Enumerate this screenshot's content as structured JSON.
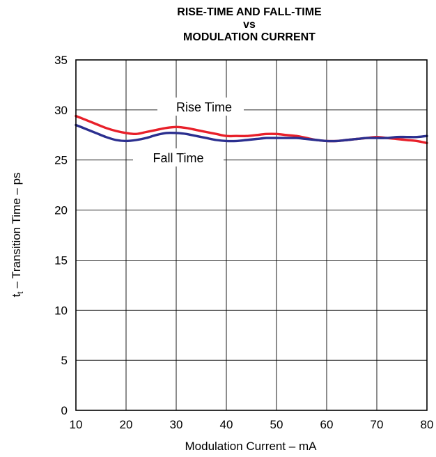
{
  "chart_data": {
    "type": "line",
    "title_lines": [
      "RISE-TIME AND FALL-TIME",
      "vs",
      "MODULATION CURRENT"
    ],
    "xlabel": "Modulation Current – mA",
    "ylabel_prefix": "t",
    "ylabel_subscript": "t",
    "ylabel_rest": " – Transition Time – ps",
    "xlim": [
      10,
      80
    ],
    "ylim": [
      0,
      35
    ],
    "xticks": [
      "10",
      "20",
      "30",
      "40",
      "50",
      "60",
      "70",
      "80"
    ],
    "yticks": [
      "0",
      "5",
      "10",
      "15",
      "20",
      "25",
      "30",
      "35"
    ],
    "grid": true,
    "series": [
      {
        "name": "Rise Time",
        "color": "#e8202a",
        "x": [
          10,
          12,
          14,
          16,
          18,
          20,
          22,
          24,
          26,
          28,
          30,
          32,
          34,
          36,
          38,
          40,
          42,
          44,
          46,
          48,
          50,
          52,
          54,
          56,
          58,
          60,
          62,
          64,
          66,
          68,
          70,
          72,
          74,
          76,
          78,
          80
        ],
        "y": [
          29.4,
          29.0,
          28.6,
          28.2,
          27.9,
          27.7,
          27.6,
          27.8,
          28.0,
          28.2,
          28.3,
          28.2,
          28.0,
          27.8,
          27.6,
          27.4,
          27.4,
          27.4,
          27.5,
          27.6,
          27.6,
          27.5,
          27.4,
          27.2,
          27.0,
          26.9,
          26.9,
          27.0,
          27.1,
          27.2,
          27.3,
          27.2,
          27.1,
          27.0,
          26.9,
          26.7
        ]
      },
      {
        "name": "Fall Time",
        "color": "#2b2f8f",
        "x": [
          10,
          12,
          14,
          16,
          18,
          20,
          22,
          24,
          26,
          28,
          30,
          32,
          34,
          36,
          38,
          40,
          42,
          44,
          46,
          48,
          50,
          52,
          54,
          56,
          58,
          60,
          62,
          64,
          66,
          68,
          70,
          72,
          74,
          76,
          78,
          80
        ],
        "y": [
          28.5,
          28.1,
          27.7,
          27.3,
          27.0,
          26.9,
          27.0,
          27.2,
          27.5,
          27.7,
          27.7,
          27.6,
          27.4,
          27.2,
          27.0,
          26.9,
          26.9,
          27.0,
          27.1,
          27.2,
          27.2,
          27.2,
          27.2,
          27.1,
          27.0,
          26.9,
          26.9,
          27.0,
          27.1,
          27.2,
          27.2,
          27.2,
          27.3,
          27.3,
          27.3,
          27.4
        ]
      }
    ],
    "annotations": [
      "Rise Time",
      "Fall Time"
    ]
  }
}
